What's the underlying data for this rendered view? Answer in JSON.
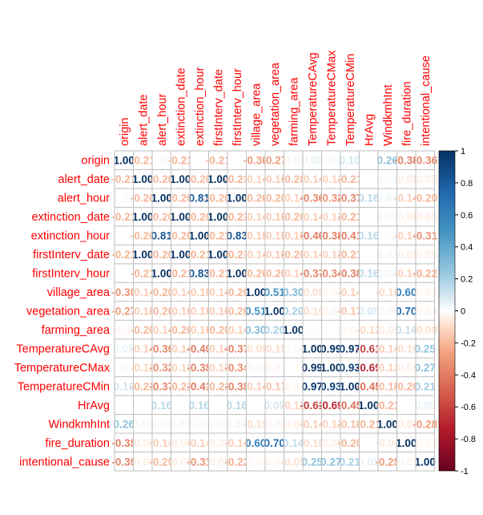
{
  "chart_data": {
    "type": "heatmap",
    "title": "",
    "variables": [
      "origin",
      "alert_date",
      "alert_hour",
      "extinction_date",
      "extinction_hour",
      "firstInterv_date",
      "firstInterv_hour",
      "village_area",
      "vegetation_area",
      "farming_area",
      "TemperatureCAvg",
      "TemperatureCMax",
      "TemperatureCMin",
      "HrAvg",
      "WindkmhInt",
      "fire_duration",
      "intentional_cause"
    ],
    "matrix": [
      [
        1.0,
        -0.21,
        0.02,
        -0.21,
        0.0,
        -0.21,
        0.0,
        -0.3,
        -0.27,
        -0.03,
        0.05,
        0.02,
        0.1,
        0.0,
        0.26,
        -0.38,
        -0.36
      ],
      [
        -0.21,
        1.0,
        -0.2,
        1.0,
        -0.2,
        1.0,
        -0.21,
        -0.14,
        -0.15,
        -0.2,
        -0.14,
        -0.13,
        -0.21,
        0.0,
        0.03,
        -0.05,
        -0.05
      ],
      [
        0.02,
        -0.2,
        1.0,
        -0.2,
        0.81,
        -0.2,
        1.0,
        -0.2,
        -0.2,
        -0.14,
        -0.36,
        -0.32,
        -0.37,
        0.16,
        0.04,
        -0.14,
        -0.2
      ],
      [
        -0.21,
        1.0,
        -0.2,
        1.0,
        -0.2,
        1.0,
        -0.21,
        -0.14,
        -0.15,
        -0.2,
        -0.14,
        -0.13,
        -0.21,
        0.0,
        0.03,
        -0.05,
        -0.05
      ],
      [
        0.0,
        -0.2,
        0.81,
        -0.2,
        1.0,
        -0.21,
        0.83,
        -0.15,
        -0.15,
        -0.15,
        -0.4,
        -0.38,
        -0.41,
        0.16,
        0.02,
        -0.14,
        -0.31
      ],
      [
        -0.21,
        1.0,
        -0.2,
        1.0,
        -0.21,
        1.0,
        -0.21,
        -0.14,
        -0.15,
        -0.2,
        -0.14,
        -0.13,
        -0.21,
        0.0,
        0.03,
        -0.05,
        -0.05
      ],
      [
        0.0,
        -0.21,
        1.0,
        -0.21,
        0.83,
        -0.21,
        1.0,
        -0.2,
        -0.2,
        -0.14,
        -0.37,
        -0.34,
        -0.38,
        0.16,
        0.04,
        -0.14,
        -0.22
      ],
      [
        -0.3,
        -0.14,
        -0.2,
        -0.14,
        -0.15,
        -0.14,
        -0.2,
        1.0,
        0.51,
        0.3,
        -0.09,
        -0.03,
        -0.14,
        0.0,
        -0.1,
        0.6,
        -0.03
      ],
      [
        -0.27,
        -0.15,
        -0.2,
        -0.15,
        -0.15,
        -0.15,
        -0.2,
        0.51,
        1.0,
        0.2,
        -0.1,
        -0.04,
        -0.17,
        0.09,
        -0.03,
        0.7,
        -0.04
      ],
      [
        -0.03,
        -0.2,
        -0.14,
        -0.2,
        -0.15,
        -0.2,
        -0.14,
        0.3,
        0.2,
        1.0,
        -0.02,
        -0.01,
        -0.03,
        -0.12,
        -0.05,
        0.14,
        -0.09
      ],
      [
        0.05,
        -0.14,
        -0.36,
        -0.14,
        -0.4,
        -0.14,
        -0.37,
        -0.09,
        -0.1,
        -0.02,
        1.0,
        0.99,
        0.97,
        -0.61,
        -0.14,
        -0.1,
        0.25
      ],
      [
        0.02,
        -0.13,
        -0.32,
        -0.13,
        -0.38,
        -0.13,
        -0.34,
        -0.03,
        -0.04,
        -0.01,
        0.99,
        1.0,
        0.93,
        -0.69,
        -0.13,
        -0.05,
        0.27
      ],
      [
        0.1,
        -0.21,
        -0.37,
        -0.21,
        -0.41,
        -0.21,
        -0.38,
        -0.14,
        -0.17,
        -0.03,
        0.97,
        0.93,
        1.0,
        -0.45,
        -0.18,
        -0.2,
        0.21
      ],
      [
        0.0,
        0.0,
        0.16,
        0.0,
        0.16,
        0.0,
        0.16,
        0.0,
        0.09,
        -0.12,
        -0.61,
        -0.69,
        -0.45,
        1.0,
        -0.21,
        0.0,
        0.05
      ],
      [
        0.26,
        0.03,
        0.04,
        0.03,
        0.02,
        0.03,
        0.04,
        -0.1,
        -0.03,
        -0.05,
        -0.14,
        -0.13,
        -0.18,
        -0.21,
        1.0,
        -0.06,
        -0.28
      ],
      [
        -0.38,
        -0.05,
        -0.14,
        -0.05,
        -0.14,
        -0.05,
        -0.14,
        0.6,
        0.7,
        0.14,
        -0.1,
        -0.05,
        -0.2,
        0.0,
        -0.06,
        1.0,
        -0.03
      ],
      [
        -0.36,
        -0.05,
        -0.2,
        -0.05,
        -0.31,
        -0.05,
        -0.22,
        -0.03,
        -0.04,
        -0.09,
        0.25,
        0.27,
        0.21,
        0.05,
        -0.28,
        -0.03,
        1.0
      ]
    ],
    "colorbar": {
      "min": -1,
      "max": 1,
      "ticks": [
        -1,
        -0.8,
        -0.6,
        -0.4,
        -0.2,
        0,
        0.2,
        0.4,
        0.6,
        0.8,
        1
      ]
    },
    "colors": {
      "negative": "#67001F",
      "neutral": "#FFFFFF",
      "positive": "#053061",
      "label": "#FF0000",
      "grid": "#BEBEBE"
    }
  }
}
